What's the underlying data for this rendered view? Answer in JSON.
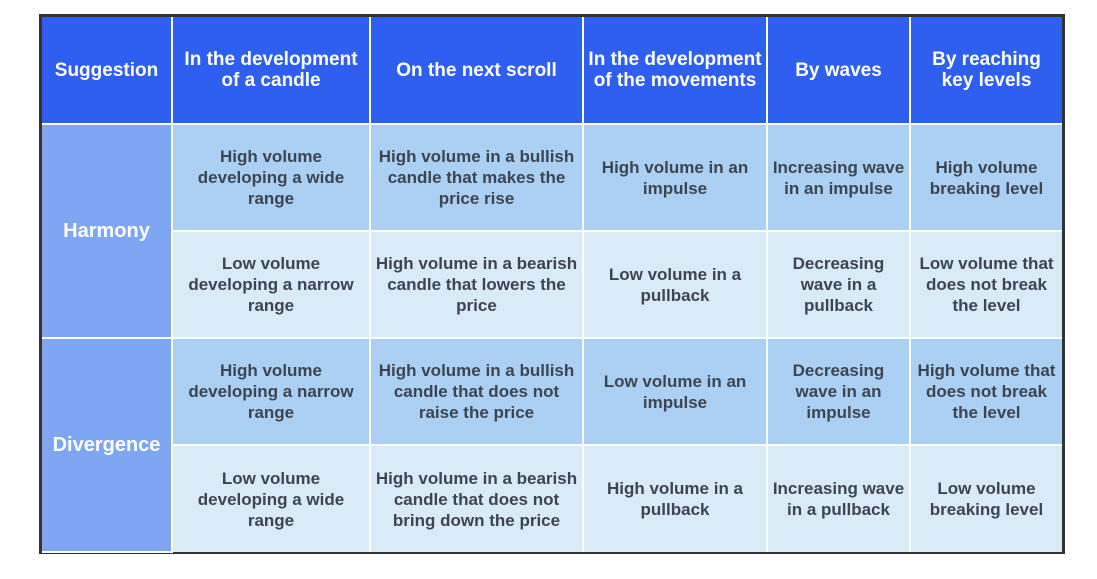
{
  "colors": {
    "header_bg": "#2f5ff0",
    "rowhead_bg": "#7ea6f3",
    "cell_dark": "#acd0f4",
    "cell_light": "#d9ebf7",
    "border": "#333333",
    "text": "#3d4552"
  },
  "table": {
    "headers": [
      "Suggestion",
      "In the development of a candle",
      "On the next scroll",
      "In the development of the movements",
      "By waves",
      "By reaching key levels"
    ],
    "groups": [
      {
        "label": "Harmony",
        "rows": [
          [
            "High volume developing a wide range",
            "High volume in a bullish candle that makes the price rise",
            "High volume in an impulse",
            "Increasing wave in an impulse",
            "High volume breaking level"
          ],
          [
            "Low volume developing a narrow range",
            "High volume in a bearish candle that lowers the price",
            "Low volume in a pullback",
            "Decreasing wave in a pullback",
            "Low volume that does not break the level"
          ]
        ]
      },
      {
        "label": "Divergence",
        "rows": [
          [
            "High volume developing a narrow range",
            "High volume in a bullish candle that does not raise the price",
            "Low volume in an impulse",
            "Decreasing wave in an impulse",
            "High volume that does not break the level"
          ],
          [
            "Low volume developing a wide range",
            "High volume in a bearish candle that does not bring down the price",
            "High volume in a pullback",
            "Increasing wave in a pullback",
            "Low volume breaking level"
          ]
        ]
      }
    ]
  }
}
